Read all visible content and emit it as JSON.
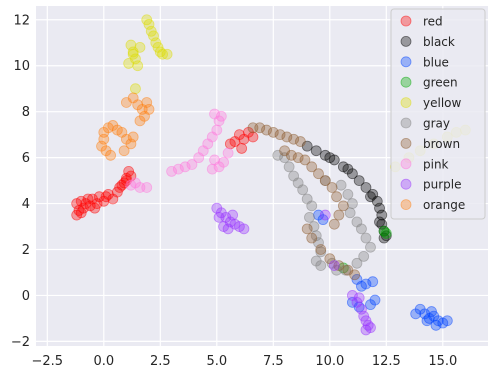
{
  "chart_data": {
    "type": "scatter",
    "title": "",
    "xlabel": "",
    "ylabel": "",
    "xlim": [
      -3.0,
      17.0
    ],
    "ylim": [
      -2.2,
      12.6
    ],
    "xticks": [
      -2.5,
      0.0,
      2.5,
      5.0,
      7.5,
      10.0,
      12.5,
      15.0
    ],
    "xtick_labels": [
      "−2.5",
      "0.0",
      "2.5",
      "5.0",
      "7.5",
      "10.0",
      "12.5",
      "15.0"
    ],
    "yticks": [
      -2,
      0,
      2,
      4,
      6,
      8,
      10,
      12
    ],
    "ytick_labels": [
      "−2",
      "0",
      "2",
      "4",
      "6",
      "8",
      "10",
      "12"
    ],
    "grid": true,
    "background": "#eaeaf2",
    "legend_position": "top-right",
    "series": [
      {
        "name": "red",
        "color": "#ff0000",
        "points": [
          [
            -1.2,
            3.5
          ],
          [
            -1.1,
            3.7
          ],
          [
            -1.0,
            3.6
          ],
          [
            -0.9,
            3.8
          ],
          [
            -1.2,
            4.0
          ],
          [
            -1.0,
            4.1
          ],
          [
            -0.8,
            4.0
          ],
          [
            -0.6,
            3.9
          ],
          [
            -0.5,
            4.2
          ],
          [
            -0.3,
            4.0
          ],
          [
            -0.2,
            4.3
          ],
          [
            0.0,
            4.1
          ],
          [
            0.2,
            4.4
          ],
          [
            0.4,
            4.2
          ],
          [
            0.6,
            4.5
          ],
          [
            0.7,
            4.7
          ],
          [
            0.9,
            4.9
          ],
          [
            1.0,
            5.1
          ],
          [
            1.1,
            5.4
          ],
          [
            1.2,
            5.2
          ],
          [
            1.0,
            5.0
          ],
          [
            -0.7,
            4.2
          ],
          [
            -0.4,
            3.8
          ],
          [
            0.1,
            4.3
          ],
          [
            0.8,
            4.8
          ],
          [
            5.8,
            6.7
          ],
          [
            6.0,
            7.0
          ],
          [
            6.1,
            6.4
          ],
          [
            6.4,
            7.1
          ],
          [
            6.6,
            6.9
          ],
          [
            6.2,
            6.8
          ],
          [
            5.6,
            6.6
          ]
        ]
      },
      {
        "name": "black",
        "color": "#000000",
        "points": [
          [
            9.0,
            6.5
          ],
          [
            9.4,
            6.3
          ],
          [
            9.8,
            6.1
          ],
          [
            10.2,
            5.9
          ],
          [
            10.6,
            5.6
          ],
          [
            11.0,
            5.3
          ],
          [
            11.3,
            5.0
          ],
          [
            11.6,
            4.7
          ],
          [
            11.9,
            4.4
          ],
          [
            12.1,
            4.1
          ],
          [
            12.2,
            3.8
          ],
          [
            12.3,
            3.5
          ],
          [
            12.3,
            3.1
          ],
          [
            12.4,
            2.8
          ],
          [
            12.4,
            2.5
          ],
          [
            10.0,
            6.0
          ],
          [
            10.8,
            5.5
          ],
          [
            11.8,
            4.3
          ],
          [
            12.2,
            3.2
          ],
          [
            12.5,
            2.6
          ]
        ]
      },
      {
        "name": "blue",
        "color": "#0044ff",
        "points": [
          [
            14.0,
            -0.6
          ],
          [
            14.2,
            -0.8
          ],
          [
            14.4,
            -1.0
          ],
          [
            14.6,
            -0.9
          ],
          [
            14.8,
            -1.1
          ],
          [
            15.0,
            -1.2
          ],
          [
            15.2,
            -1.1
          ],
          [
            14.5,
            -0.7
          ],
          [
            14.3,
            -1.1
          ],
          [
            14.7,
            -1.3
          ],
          [
            11.2,
            0.7
          ],
          [
            11.6,
            0.5
          ],
          [
            11.9,
            0.6
          ],
          [
            11.4,
            0.4
          ],
          [
            9.5,
            3.5
          ],
          [
            9.7,
            3.3
          ],
          [
            11.0,
            -0.3
          ],
          [
            11.3,
            -0.5
          ],
          [
            11.8,
            -0.4
          ],
          [
            12.0,
            -0.2
          ],
          [
            13.8,
            -0.8
          ]
        ]
      },
      {
        "name": "green",
        "color": "#00aa00",
        "points": [
          [
            12.4,
            2.8
          ],
          [
            12.5,
            2.7
          ],
          [
            10.6,
            1.2
          ]
        ]
      },
      {
        "name": "yellow",
        "color": "#dddd00",
        "points": [
          [
            1.9,
            12.0
          ],
          [
            2.0,
            11.8
          ],
          [
            2.1,
            11.5
          ],
          [
            2.2,
            11.3
          ],
          [
            2.3,
            11.0
          ],
          [
            2.4,
            10.8
          ],
          [
            2.5,
            10.6
          ],
          [
            2.6,
            10.5
          ],
          [
            1.2,
            10.9
          ],
          [
            1.3,
            10.6
          ],
          [
            1.4,
            10.3
          ],
          [
            1.1,
            10.1
          ],
          [
            1.5,
            10.0
          ],
          [
            1.6,
            10.8
          ],
          [
            1.3,
            10.5
          ],
          [
            1.4,
            9.0
          ],
          [
            2.8,
            10.5
          ],
          [
            12.9,
            5.6
          ],
          [
            13.5,
            6.0
          ],
          [
            14.0,
            6.3
          ],
          [
            14.6,
            6.6
          ],
          [
            15.2,
            6.9
          ],
          [
            15.6,
            7.1
          ],
          [
            16.0,
            7.2
          ]
        ]
      },
      {
        "name": "gray",
        "color": "#7f7f7f",
        "points": [
          [
            8.2,
            5.6
          ],
          [
            8.4,
            5.2
          ],
          [
            8.6,
            4.9
          ],
          [
            8.8,
            4.6
          ],
          [
            9.0,
            4.2
          ],
          [
            9.2,
            3.9
          ],
          [
            9.1,
            3.4
          ],
          [
            9.3,
            3.0
          ],
          [
            9.4,
            2.6
          ],
          [
            9.5,
            2.3
          ],
          [
            9.6,
            1.9
          ],
          [
            9.4,
            1.5
          ],
          [
            9.6,
            1.3
          ],
          [
            10.1,
            1.4
          ],
          [
            10.3,
            1.1
          ],
          [
            10.5,
            4.8
          ],
          [
            10.8,
            4.4
          ],
          [
            11.0,
            4.0
          ],
          [
            10.9,
            3.6
          ],
          [
            11.2,
            3.2
          ],
          [
            11.4,
            2.9
          ],
          [
            11.6,
            2.5
          ],
          [
            11.8,
            2.1
          ],
          [
            11.5,
            1.7
          ],
          [
            11.2,
            1.4
          ],
          [
            10.7,
            1.1
          ],
          [
            7.7,
            6.1
          ],
          [
            8.0,
            6.0
          ],
          [
            9.8,
            5.0
          ]
        ]
      },
      {
        "name": "brown",
        "color": "#8b5a2b",
        "points": [
          [
            6.6,
            7.3
          ],
          [
            6.9,
            7.3
          ],
          [
            7.2,
            7.2
          ],
          [
            7.5,
            7.1
          ],
          [
            7.8,
            7.0
          ],
          [
            8.1,
            6.9
          ],
          [
            8.4,
            6.8
          ],
          [
            8.7,
            6.7
          ],
          [
            8.0,
            6.3
          ],
          [
            8.3,
            6.1
          ],
          [
            8.6,
            6.0
          ],
          [
            8.9,
            5.9
          ],
          [
            9.2,
            5.6
          ],
          [
            9.5,
            5.3
          ],
          [
            9.8,
            5.0
          ],
          [
            10.1,
            4.7
          ],
          [
            10.3,
            4.3
          ],
          [
            10.6,
            3.9
          ],
          [
            10.4,
            3.5
          ],
          [
            10.2,
            3.1
          ],
          [
            9.0,
            2.9
          ],
          [
            9.2,
            2.5
          ],
          [
            9.6,
            2.0
          ],
          [
            10.0,
            1.6
          ],
          [
            10.4,
            1.3
          ],
          [
            10.8,
            1.1
          ],
          [
            11.1,
            0.9
          ]
        ]
      },
      {
        "name": "pink",
        "color": "#ff77dd",
        "points": [
          [
            3.0,
            5.4
          ],
          [
            3.3,
            5.5
          ],
          [
            3.6,
            5.6
          ],
          [
            3.9,
            5.7
          ],
          [
            4.2,
            6.0
          ],
          [
            4.4,
            6.3
          ],
          [
            4.6,
            6.6
          ],
          [
            4.8,
            6.9
          ],
          [
            5.0,
            7.2
          ],
          [
            5.1,
            7.6
          ],
          [
            4.9,
            7.9
          ],
          [
            5.2,
            7.8
          ],
          [
            4.8,
            5.5
          ],
          [
            5.1,
            5.6
          ],
          [
            5.3,
            5.8
          ],
          [
            4.9,
            5.9
          ],
          [
            1.2,
            4.8
          ],
          [
            1.6,
            4.7
          ],
          [
            1.9,
            4.7
          ],
          [
            1.4,
            4.9
          ],
          [
            5.5,
            6.2
          ]
        ]
      },
      {
        "name": "purple",
        "color": "#9933ff",
        "points": [
          [
            5.0,
            3.8
          ],
          [
            5.2,
            3.6
          ],
          [
            5.4,
            3.4
          ],
          [
            5.6,
            3.2
          ],
          [
            5.8,
            3.1
          ],
          [
            6.0,
            3.0
          ],
          [
            6.2,
            2.9
          ],
          [
            5.3,
            3.0
          ],
          [
            5.5,
            2.9
          ],
          [
            5.1,
            3.4
          ],
          [
            5.7,
            3.5
          ],
          [
            11.0,
            0.0
          ],
          [
            11.2,
            -0.3
          ],
          [
            11.4,
            -0.6
          ],
          [
            11.5,
            -0.9
          ],
          [
            11.6,
            -1.1
          ],
          [
            11.7,
            -1.3
          ],
          [
            11.6,
            -1.5
          ],
          [
            11.8,
            -1.4
          ],
          [
            11.3,
            -0.1
          ],
          [
            9.8,
            3.5
          ],
          [
            10.2,
            1.3
          ]
        ]
      },
      {
        "name": "orange",
        "color": "#ff7f0e",
        "points": [
          [
            0.0,
            7.1
          ],
          [
            0.2,
            7.3
          ],
          [
            0.4,
            7.4
          ],
          [
            0.6,
            7.2
          ],
          [
            0.8,
            7.1
          ],
          [
            0.0,
            6.8
          ],
          [
            -0.1,
            6.5
          ],
          [
            0.1,
            6.3
          ],
          [
            0.3,
            6.1
          ],
          [
            1.0,
            6.8
          ],
          [
            1.2,
            6.6
          ],
          [
            1.3,
            6.9
          ],
          [
            1.0,
            8.4
          ],
          [
            1.3,
            8.6
          ],
          [
            1.5,
            8.3
          ],
          [
            1.7,
            8.1
          ],
          [
            1.9,
            8.4
          ],
          [
            2.0,
            8.1
          ],
          [
            1.8,
            7.8
          ],
          [
            1.6,
            7.6
          ],
          [
            0.9,
            6.3
          ]
        ]
      }
    ]
  }
}
